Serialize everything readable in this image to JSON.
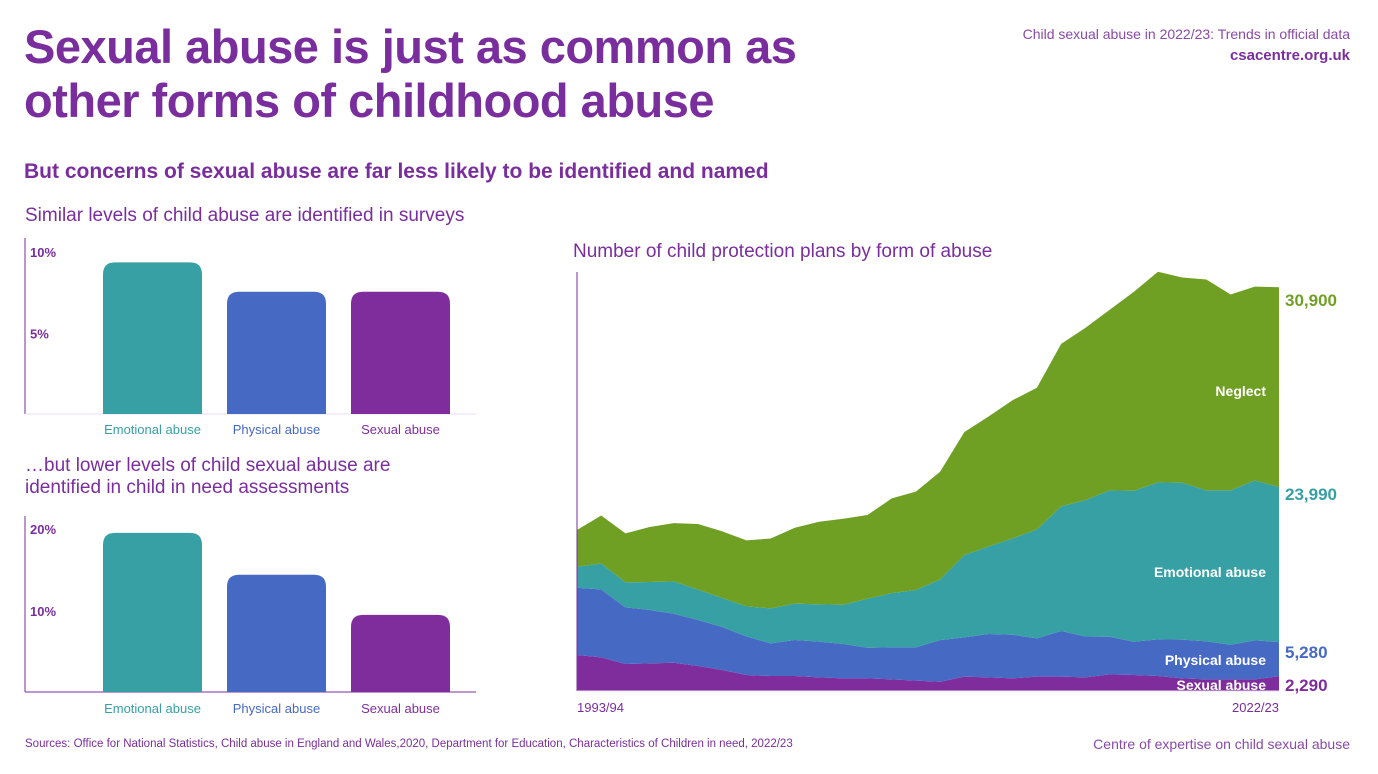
{
  "header": {
    "title_line1": "Sexual abuse is just as common as",
    "title_line2": "other forms of childhood abuse",
    "report": "Child sexual abuse in 2022/23: Trends in official data",
    "site": "csacentre.org.uk",
    "subtitle": "But concerns of sexual abuse are far less likely to be identified and named"
  },
  "footer": {
    "sources": "Sources: Office for National Statistics, Child abuse in England and Wales,2020, Department for Education, Characteristics of Children in need, 2022/23",
    "org": "Centre of expertise on child sexual abuse"
  },
  "colors": {
    "emotional": "#37a0a5",
    "physical": "#4669c3",
    "sexual": "#7f2d9c",
    "neglect": "#6fa024",
    "text": "#7a2e9e"
  },
  "chart_data": [
    {
      "type": "bar",
      "title": "Similar levels of child abuse are identified in surveys",
      "categories": [
        "Emotional abuse",
        "Physical abuse",
        "Sexual abuse"
      ],
      "values": [
        9.3,
        7.5,
        7.5
      ],
      "ytick_labels": [
        "10%",
        "5%"
      ],
      "yticks": [
        10,
        5
      ],
      "ylim": [
        0,
        10.5
      ]
    },
    {
      "type": "bar",
      "title": "…but lower levels of child sexual abuse are identified in child in need assessments",
      "title_line1": "…but lower levels of child sexual abuse are",
      "title_line2": "identified in child in need assessments",
      "categories": [
        "Emotional abuse",
        "Physical abuse",
        "Sexual abuse"
      ],
      "values": [
        19.4,
        14.3,
        9.4
      ],
      "ytick_labels": [
        "20%",
        "10%"
      ],
      "yticks": [
        20,
        10
      ],
      "ylim": [
        0,
        21
      ]
    },
    {
      "type": "area",
      "stacked": true,
      "title": "Number of child protection plans by form of abuse",
      "x_labels": [
        "1993/94",
        "2022/23"
      ],
      "x_start": 1993,
      "x_end": 2022,
      "ylim": [
        0,
        62500
      ],
      "series": [
        {
          "name": "Sexual abuse",
          "end_label": "2,290",
          "values": [
            5570,
            5200,
            4180,
            4280,
            4380,
            3870,
            3250,
            2470,
            2320,
            2320,
            2110,
            1960,
            1960,
            1800,
            1600,
            1440,
            2220,
            2110,
            1960,
            2220,
            2220,
            2110,
            2580,
            2470,
            2320,
            1960,
            1800,
            1800,
            1800,
            2290
          ]
        },
        {
          "name": "Physical abuse",
          "end_label": "5,280",
          "values": [
            10410,
            10510,
            8760,
            8250,
            7580,
            7120,
            6650,
            5980,
            5050,
            5570,
            5520,
            5310,
            4740,
            4950,
            5160,
            6440,
            6080,
            6700,
            6750,
            5930,
            7060,
            6330,
            5820,
            5150,
            5670,
            5980,
            5880,
            5360,
            6030,
            5280
          ]
        },
        {
          "name": "Emotional abuse",
          "end_label": "23,990",
          "values": [
            3250,
            4020,
            3870,
            4330,
            4990,
            4690,
            4480,
            4640,
            5410,
            5620,
            5770,
            6080,
            7580,
            8400,
            8870,
            9380,
            12730,
            13550,
            14900,
            16860,
            19280,
            21080,
            22630,
            23350,
            24280,
            24280,
            23350,
            23870,
            24740,
            23990
          ]
        },
        {
          "name": "Neglect",
          "end_label": "30,900",
          "values": [
            5670,
            7420,
            7580,
            8510,
            9020,
            10150,
            10310,
            10210,
            10820,
            11750,
            12780,
            13300,
            12940,
            14640,
            15210,
            16650,
            19020,
            20100,
            21390,
            21910,
            25150,
            26650,
            27940,
            30770,
            32580,
            31750,
            32630,
            30310,
            29990,
            30900
          ]
        }
      ]
    }
  ]
}
